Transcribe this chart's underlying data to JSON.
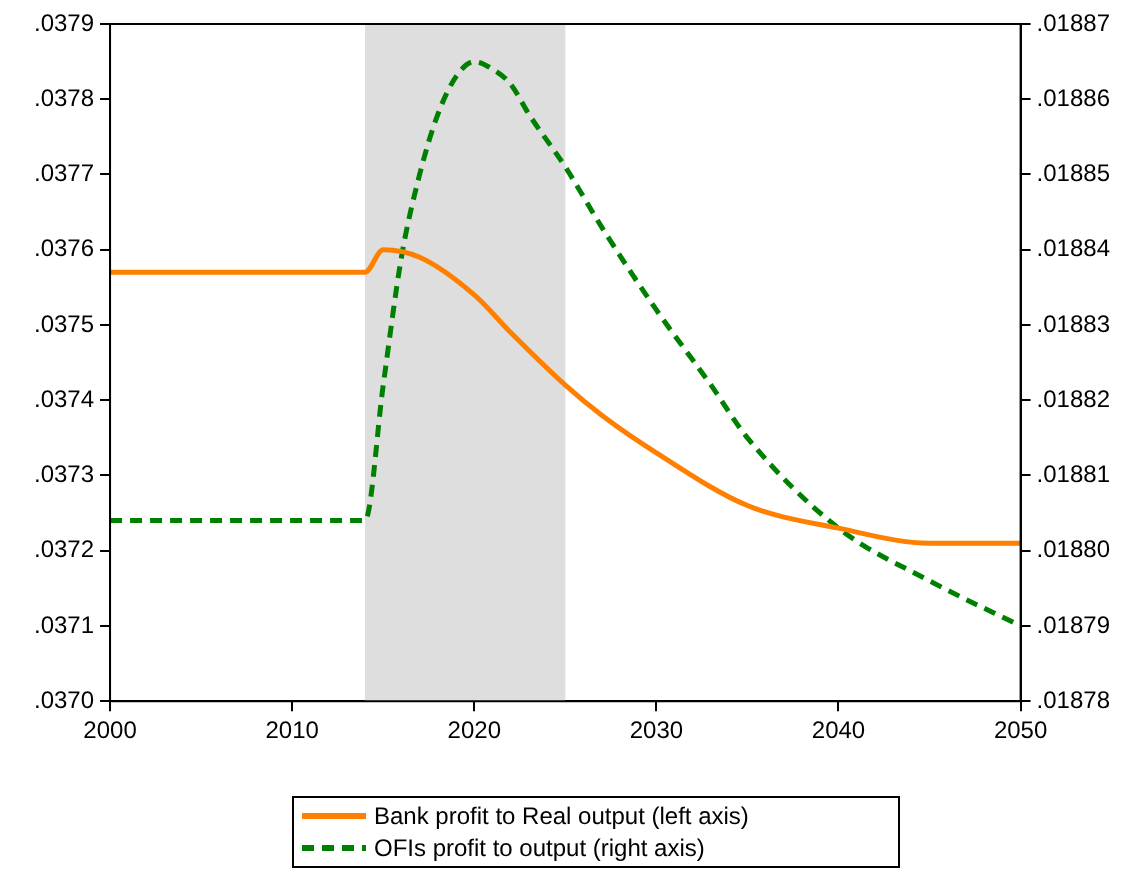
{
  "chart_data": {
    "type": "line",
    "legend": "bottom",
    "grid": false,
    "xlim": [
      2000,
      2050
    ],
    "xticks": [
      2000,
      2010,
      2020,
      2030,
      2040,
      2050
    ],
    "ylim": [
      0.037,
      0.0379
    ],
    "yticks": [
      {
        "value": 0.037,
        "label": ".0370"
      },
      {
        "value": 0.0371,
        "label": ".0371"
      },
      {
        "value": 0.0372,
        "label": ".0372"
      },
      {
        "value": 0.0373,
        "label": ".0373"
      },
      {
        "value": 0.0374,
        "label": ".0374"
      },
      {
        "value": 0.0375,
        "label": ".0375"
      },
      {
        "value": 0.0376,
        "label": ".0376"
      },
      {
        "value": 0.0377,
        "label": ".0377"
      },
      {
        "value": 0.0378,
        "label": ".0378"
      },
      {
        "value": 0.0379,
        "label": ".0379"
      }
    ],
    "y2lim": [
      0.01878,
      0.01887
    ],
    "y2ticks": [
      {
        "value": 0.01878,
        "label": ".01878"
      },
      {
        "value": 0.01879,
        "label": ".01879"
      },
      {
        "value": 0.0188,
        "label": ".01880"
      },
      {
        "value": 0.01881,
        "label": ".01881"
      },
      {
        "value": 0.01882,
        "label": ".01882"
      },
      {
        "value": 0.01883,
        "label": ".01883"
      },
      {
        "value": 0.01884,
        "label": ".01884"
      },
      {
        "value": 0.01885,
        "label": ".01885"
      },
      {
        "value": 0.01886,
        "label": ".01886"
      },
      {
        "value": 0.01887,
        "label": ".01887"
      }
    ],
    "bands": [
      {
        "axis": "x",
        "from": 2014,
        "to": 2025,
        "color": "#dedede"
      }
    ],
    "series": [
      {
        "name": "Bank profit to Real output (left axis)",
        "color": "#ff8000",
        "line_style": "solid",
        "x": [
          2000,
          2014,
          2015,
          2017,
          2020,
          2022,
          2025,
          2027,
          2030,
          2035,
          2040,
          2045,
          2050
        ],
        "values": [
          0.03757,
          0.03757,
          0.0376,
          0.03759,
          0.03754,
          0.03749,
          0.03742,
          0.03738,
          0.03733,
          0.03726,
          0.03723,
          0.03721,
          0.03721
        ]
      },
      {
        "name": "OFIs profit to output (right axis)",
        "color": "#008000",
        "line_style": "dashed",
        "axis": "y2",
        "x": [
          2000,
          2014,
          2015,
          2016,
          2017,
          2018,
          2019,
          2020,
          2021,
          2022,
          2023,
          2025,
          2027,
          2030,
          2033,
          2035,
          2040,
          2045,
          2050
        ],
        "values": [
          0.018804,
          0.018804,
          0.018822,
          0.018839,
          0.01885,
          0.018858,
          0.018863,
          0.018865,
          0.018864,
          0.018862,
          0.018858,
          0.018851,
          0.018843,
          0.018832,
          0.018822,
          0.018815,
          0.018803,
          0.018796,
          0.01879
        ]
      }
    ]
  }
}
